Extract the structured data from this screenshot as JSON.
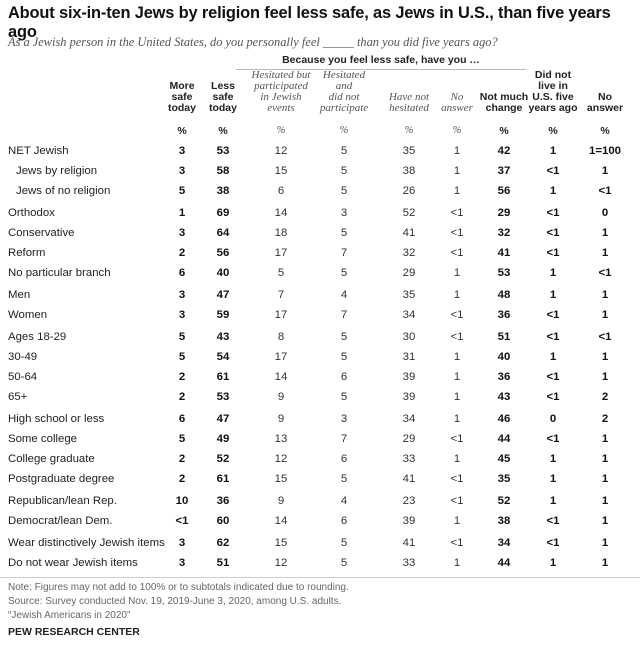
{
  "title": "About six-in-ten Jews by religion feel less safe, as Jews in U.S., than five years ago",
  "subtitle": "As a Jewish person in the United States, do you personally feel _____ than you did five years ago?",
  "span_header": "Because you feel less safe, have you …",
  "columns": [
    {
      "lines": [
        "More",
        "safe",
        "today"
      ],
      "bold": true,
      "unit": "%"
    },
    {
      "lines": [
        "Less",
        "safe",
        "today"
      ],
      "bold": true,
      "unit": "%"
    },
    {
      "lines": [
        "Hesitated but",
        "participated",
        "in Jewish",
        "events"
      ],
      "bold": false,
      "unit": "%"
    },
    {
      "lines": [
        "Hesitated",
        "and",
        "did not",
        "participate"
      ],
      "bold": false,
      "unit": "%"
    },
    {
      "lines": [
        "Have not",
        "hesitated"
      ],
      "bold": false,
      "unit": "%"
    },
    {
      "lines": [
        "No",
        "answer"
      ],
      "bold": false,
      "unit": "%"
    },
    {
      "lines": [
        "Not much",
        "change"
      ],
      "bold": true,
      "unit": "%"
    },
    {
      "lines": [
        "Did not",
        "live in",
        "U.S. five",
        "years ago"
      ],
      "bold": true,
      "unit": "%"
    },
    {
      "lines": [
        "No",
        "answer"
      ],
      "bold": true,
      "unit": "%"
    }
  ],
  "chart_data": {
    "type": "table",
    "title": "About six-in-ten Jews by religion feel less safe, as Jews in U.S., than five years ago",
    "columns": [
      "More safe today",
      "Less safe today",
      "Hesitated but participated in Jewish events",
      "Hesitated and did not participate",
      "Have not hesitated",
      "No answer",
      "Not much change",
      "Did not live in U.S. five years ago",
      "No answer"
    ],
    "rows": [
      {
        "label": "NET Jewish",
        "values": [
          "3",
          "53",
          "12",
          "5",
          "35",
          "1",
          "42",
          "1",
          "1=100"
        ]
      },
      {
        "label": "Jews by religion",
        "values": [
          "3",
          "58",
          "15",
          "5",
          "38",
          "1",
          "37",
          "<1",
          "1"
        ]
      },
      {
        "label": "Jews of no religion",
        "values": [
          "5",
          "38",
          "6",
          "5",
          "26",
          "1",
          "56",
          "1",
          "<1"
        ]
      },
      {
        "label": "Orthodox",
        "values": [
          "1",
          "69",
          "14",
          "3",
          "52",
          "<1",
          "29",
          "<1",
          "0"
        ]
      },
      {
        "label": "Conservative",
        "values": [
          "3",
          "64",
          "18",
          "5",
          "41",
          "<1",
          "32",
          "<1",
          "1"
        ]
      },
      {
        "label": "Reform",
        "values": [
          "2",
          "56",
          "17",
          "7",
          "32",
          "<1",
          "41",
          "<1",
          "1"
        ]
      },
      {
        "label": "No particular branch",
        "values": [
          "6",
          "40",
          "5",
          "5",
          "29",
          "1",
          "53",
          "1",
          "<1"
        ]
      },
      {
        "label": "Men",
        "values": [
          "3",
          "47",
          "7",
          "4",
          "35",
          "1",
          "48",
          "1",
          "1"
        ]
      },
      {
        "label": "Women",
        "values": [
          "3",
          "59",
          "17",
          "7",
          "34",
          "<1",
          "36",
          "<1",
          "1"
        ]
      },
      {
        "label": "Ages 18-29",
        "values": [
          "5",
          "43",
          "8",
          "5",
          "30",
          "<1",
          "51",
          "<1",
          "<1"
        ]
      },
      {
        "label": "30-49",
        "values": [
          "5",
          "54",
          "17",
          "5",
          "31",
          "1",
          "40",
          "1",
          "1"
        ]
      },
      {
        "label": "50-64",
        "values": [
          "2",
          "61",
          "14",
          "6",
          "39",
          "1",
          "36",
          "<1",
          "1"
        ]
      },
      {
        "label": "65+",
        "values": [
          "2",
          "53",
          "9",
          "5",
          "39",
          "1",
          "43",
          "<1",
          "2"
        ]
      },
      {
        "label": "High school or less",
        "values": [
          "6",
          "47",
          "9",
          "3",
          "34",
          "1",
          "46",
          "0",
          "2"
        ]
      },
      {
        "label": "Some college",
        "values": [
          "5",
          "49",
          "13",
          "7",
          "29",
          "<1",
          "44",
          "<1",
          "1"
        ]
      },
      {
        "label": "College graduate",
        "values": [
          "2",
          "52",
          "12",
          "6",
          "33",
          "1",
          "45",
          "1",
          "1"
        ]
      },
      {
        "label": "Postgraduate degree",
        "values": [
          "2",
          "61",
          "15",
          "5",
          "41",
          "<1",
          "35",
          "1",
          "1"
        ]
      },
      {
        "label": "Republican/lean Rep.",
        "values": [
          "10",
          "36",
          "9",
          "4",
          "23",
          "<1",
          "52",
          "1",
          "1"
        ]
      },
      {
        "label": "Democrat/lean Dem.",
        "values": [
          "<1",
          "60",
          "14",
          "6",
          "39",
          "1",
          "38",
          "<1",
          "1"
        ]
      },
      {
        "label": "Wear distinctively Jewish items",
        "values": [
          "3",
          "62",
          "15",
          "5",
          "41",
          "<1",
          "34",
          "<1",
          "1"
        ]
      },
      {
        "label": "Do not wear Jewish items",
        "values": [
          "3",
          "51",
          "12",
          "5",
          "33",
          "1",
          "44",
          "1",
          "1"
        ]
      }
    ]
  },
  "notes": [
    "Note: Figures may not add to 100% or to subtotals indicated due to rounding.",
    "Source: Survey conducted Nov. 19, 2019-June 3, 2020, among U.S. adults.",
    "“Jewish Americans in 2020”"
  ],
  "source_label": "PEW RESEARCH CENTER"
}
